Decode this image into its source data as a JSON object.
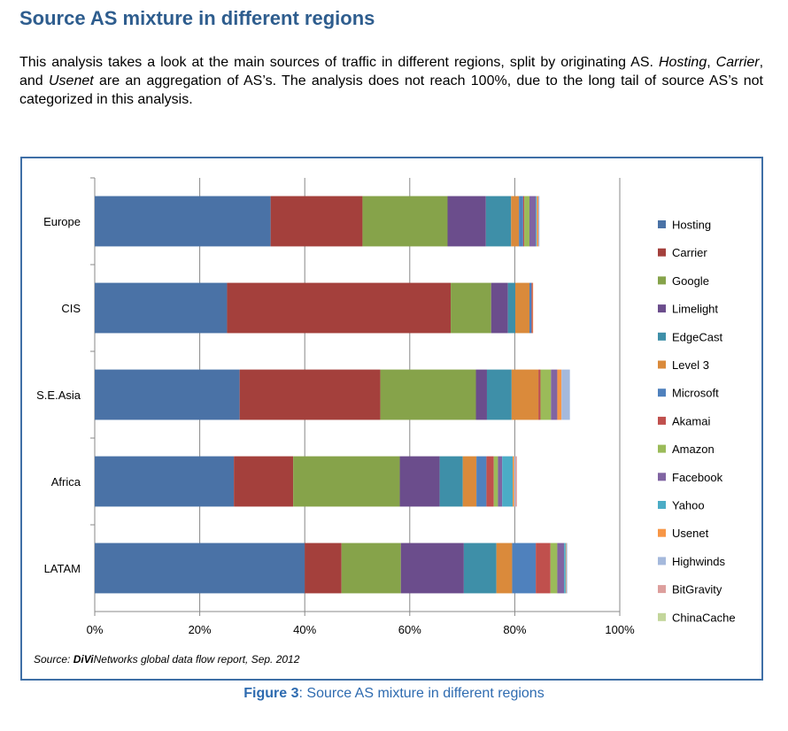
{
  "heading": "Source AS mixture in different regions",
  "intro": {
    "part1": "This analysis takes a look at the main sources of traffic in different regions, split by originating AS. ",
    "hosting": "Hosting",
    "sep1": ", ",
    "carrier": "Carrier",
    "sep2": ", and ",
    "usenet": "Usenet",
    "part2": " are an aggregation of AS’s. The analysis does not reach 100%, due to the long tail of source AS’s not categorized in this analysis."
  },
  "caption": {
    "label": "Figure 3",
    "text": ": Source AS mixture in different regions"
  },
  "chart_data": {
    "type": "bar",
    "orientation": "horizontal",
    "stacked": true,
    "categories": [
      "Europe",
      "CIS",
      "S.E.Asia",
      "Africa",
      "LATAM"
    ],
    "xlim": [
      0,
      100
    ],
    "x_ticks": [
      "0%",
      "20%",
      "40%",
      "60%",
      "80%",
      "100%"
    ],
    "grid": "vertical",
    "legend_position": "right",
    "source": {
      "prefix": "Source: ",
      "brand": "DiVi",
      "rest": "Networks global data flow report, Sep. 2012"
    },
    "series": [
      {
        "name": "Hosting",
        "color": "#4a72a6",
        "values": [
          33.5,
          25.2,
          27.6,
          26.5,
          40.0
        ]
      },
      {
        "name": "Carrier",
        "color": "#a4403c",
        "values": [
          17.5,
          42.6,
          26.8,
          11.3,
          7.0
        ]
      },
      {
        "name": "Google",
        "color": "#86a34a",
        "values": [
          16.2,
          7.7,
          18.2,
          20.3,
          11.3
        ]
      },
      {
        "name": "Limelight",
        "color": "#6b4d8c",
        "values": [
          7.3,
          3.2,
          2.1,
          7.6,
          12.0
        ]
      },
      {
        "name": "EdgeCast",
        "color": "#3e8fa8",
        "values": [
          4.8,
          1.4,
          4.7,
          4.4,
          6.2
        ]
      },
      {
        "name": "Level 3",
        "color": "#da8a3b",
        "values": [
          1.5,
          2.7,
          5.1,
          2.6,
          3.0
        ]
      },
      {
        "name": "Microsoft",
        "color": "#4f81bd",
        "values": [
          0.8,
          0.4,
          0.0,
          1.9,
          4.5
        ]
      },
      {
        "name": "Akamai",
        "color": "#c0504d",
        "values": [
          0.2,
          0.2,
          0.4,
          1.4,
          2.8
        ]
      },
      {
        "name": "Amazon",
        "color": "#9bbb59",
        "values": [
          1.0,
          0.0,
          2.0,
          0.8,
          1.3
        ]
      },
      {
        "name": "Facebook",
        "color": "#8064a2",
        "values": [
          1.2,
          0.0,
          1.2,
          0.8,
          1.3
        ]
      },
      {
        "name": "Yahoo",
        "color": "#4bacc6",
        "values": [
          0.2,
          0.0,
          0.0,
          2.0,
          0.3
        ]
      },
      {
        "name": "Usenet",
        "color": "#f79646",
        "values": [
          0.3,
          0.1,
          0.8,
          0.3,
          0.1
        ]
      },
      {
        "name": "Highwinds",
        "color": "#a5b9dc",
        "values": [
          0.2,
          0.0,
          1.6,
          0.2,
          0.2
        ]
      },
      {
        "name": "BitGravity",
        "color": "#dd9f9d",
        "values": [
          0.0,
          0.0,
          0.0,
          0.3,
          0.0
        ]
      },
      {
        "name": "ChinaCache",
        "color": "#c3d69b",
        "values": [
          0.0,
          0.0,
          0.0,
          0.0,
          0.0
        ]
      }
    ]
  }
}
